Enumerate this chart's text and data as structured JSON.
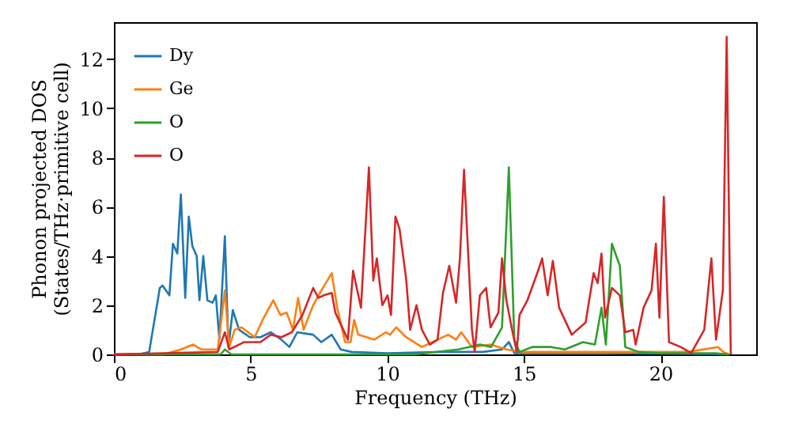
{
  "chart_data": {
    "type": "line",
    "xlabel": "Frequency (THz)",
    "ylabel": "Phonon projected DOS\n(States/THz·primitive cell)",
    "xlim": [
      0,
      23.5
    ],
    "xticks": [
      0,
      5,
      10,
      15,
      20
    ],
    "ylim": [
      0,
      13.5
    ],
    "yticks": [
      0,
      2,
      4,
      6,
      8,
      10,
      12
    ],
    "grid": false,
    "legend": "top left",
    "marker": "none",
    "line_style": "solid",
    "series": [
      {
        "name": "Dy",
        "color": "#1f77b4",
        "x": [
          0,
          1.0,
          1.29,
          1.68,
          1.78,
          2.03,
          2.16,
          2.32,
          2.45,
          2.61,
          2.74,
          2.87,
          3.03,
          3.13,
          3.27,
          3.42,
          3.61,
          3.73,
          3.86,
          4.06,
          4.19,
          4.35,
          4.58,
          4.97,
          5.36,
          5.74,
          6.13,
          6.42,
          6.71,
          7.29,
          7.59,
          7.97,
          8.3,
          8.7,
          10,
          12,
          13.5,
          14.2,
          14.45,
          14.65,
          16,
          18,
          20,
          22,
          22.5
        ],
        "values": [
          0,
          0.02,
          0.1,
          2.7,
          2.8,
          2.4,
          4.5,
          4.1,
          6.5,
          2.3,
          5.6,
          4.4,
          4.0,
          2.2,
          4.0,
          2.2,
          2.1,
          2.4,
          0.6,
          4.8,
          0.3,
          1.8,
          1.0,
          0.7,
          0.7,
          0.9,
          0.6,
          0.3,
          0.9,
          0.8,
          0.5,
          0.8,
          0.2,
          0.1,
          0.05,
          0.1,
          0.1,
          0.2,
          0.5,
          0.05,
          0.05,
          0.05,
          0.03,
          0.02,
          0
        ]
      },
      {
        "name": "Ge",
        "color": "#ff7f0e",
        "x": [
          0,
          1.8,
          2.45,
          2.9,
          3.2,
          3.8,
          4.06,
          4.22,
          4.42,
          4.67,
          5.15,
          5.44,
          5.83,
          6.09,
          6.32,
          6.55,
          6.74,
          6.94,
          7.29,
          7.59,
          7.97,
          8.17,
          8.46,
          8.66,
          8.79,
          8.94,
          9.53,
          9.95,
          10.1,
          10.33,
          10.69,
          11.27,
          11.65,
          12.23,
          12.52,
          12.71,
          13.1,
          13.78,
          14.36,
          15,
          17,
          19,
          21,
          22.1,
          22.3,
          22.5
        ],
        "values": [
          0,
          0,
          0.2,
          0.4,
          0.2,
          0.2,
          2.6,
          0.3,
          1.0,
          1.1,
          0.7,
          1.4,
          2.2,
          1.6,
          1.7,
          1.0,
          2.3,
          1.0,
          2.0,
          2.6,
          3.3,
          1.9,
          0.5,
          0.5,
          1.4,
          0.8,
          0.6,
          0.9,
          0.8,
          1.1,
          0.7,
          0.3,
          0.5,
          0.8,
          0.6,
          0.9,
          0.3,
          0.4,
          0.2,
          0.1,
          0.1,
          0.1,
          0.1,
          0.3,
          0.1,
          0
        ]
      },
      {
        "name": "O",
        "color": "#2ca02c",
        "x": [
          0,
          3.9,
          4.06,
          4.3,
          11,
          12.6,
          13.4,
          13.8,
          14.2,
          14.45,
          14.65,
          14.84,
          15.3,
          16,
          16.5,
          17.16,
          17.6,
          17.84,
          18.0,
          18.22,
          18.51,
          18.71,
          19.2,
          20,
          22,
          22.5
        ],
        "values": [
          0,
          0,
          0.2,
          0,
          0,
          0.2,
          0.4,
          0.3,
          1.1,
          7.6,
          0.6,
          0.1,
          0.3,
          0.3,
          0.2,
          0.5,
          0.4,
          1.9,
          0.4,
          4.5,
          3.6,
          0.3,
          0.1,
          0.05,
          0.05,
          0
        ]
      },
      {
        "name": "O",
        "color": "#d62728",
        "x": [
          0,
          3.8,
          4.06,
          4.22,
          4.77,
          5.36,
          5.74,
          6.13,
          6.51,
          6.9,
          7.29,
          7.48,
          7.68,
          7.97,
          8.1,
          8.56,
          8.75,
          9.04,
          9.33,
          9.49,
          9.62,
          9.82,
          10.01,
          10.14,
          10.3,
          10.45,
          10.69,
          10.84,
          11.07,
          11.27,
          11.56,
          11.84,
          12.04,
          12.27,
          12.52,
          12.66,
          12.81,
          13.1,
          13.2,
          13.39,
          13.62,
          13.78,
          14.07,
          14.2,
          14.36,
          14.55,
          14.74,
          14.84,
          15.13,
          15.52,
          15.67,
          15.87,
          16.06,
          16.29,
          16.75,
          17.26,
          17.55,
          17.7,
          17.84,
          17.97,
          18.22,
          18.51,
          18.71,
          19.0,
          19.09,
          19.38,
          19.67,
          19.83,
          19.96,
          20.12,
          20.31,
          20.74,
          21.12,
          21.6,
          21.86,
          22.03,
          22.28,
          22.42,
          22.57
        ],
        "values": [
          0,
          0.1,
          0.9,
          0.2,
          0.5,
          0.5,
          0.8,
          0.7,
          0.9,
          1.6,
          2.7,
          2.3,
          2.4,
          2.5,
          1.7,
          0.6,
          3.4,
          1.9,
          7.6,
          3.0,
          3.9,
          2.0,
          2.4,
          1.6,
          5.6,
          5.1,
          3.1,
          1.0,
          2.0,
          1.0,
          0.4,
          0.6,
          2.5,
          3.6,
          2.1,
          3.9,
          7.5,
          1.0,
          0.1,
          2.4,
          2.7,
          1.1,
          1.7,
          3.9,
          2.2,
          1.1,
          0.1,
          1.6,
          2.2,
          3.4,
          3.9,
          2.4,
          3.8,
          1.9,
          0.8,
          1.3,
          3.3,
          2.9,
          4.1,
          1.5,
          2.7,
          2.4,
          0.9,
          1.0,
          0.4,
          1.9,
          2.6,
          4.5,
          1.5,
          6.4,
          0.5,
          0.3,
          0.05,
          1.0,
          3.9,
          0.6,
          2.6,
          12.9,
          0
        ]
      }
    ]
  }
}
